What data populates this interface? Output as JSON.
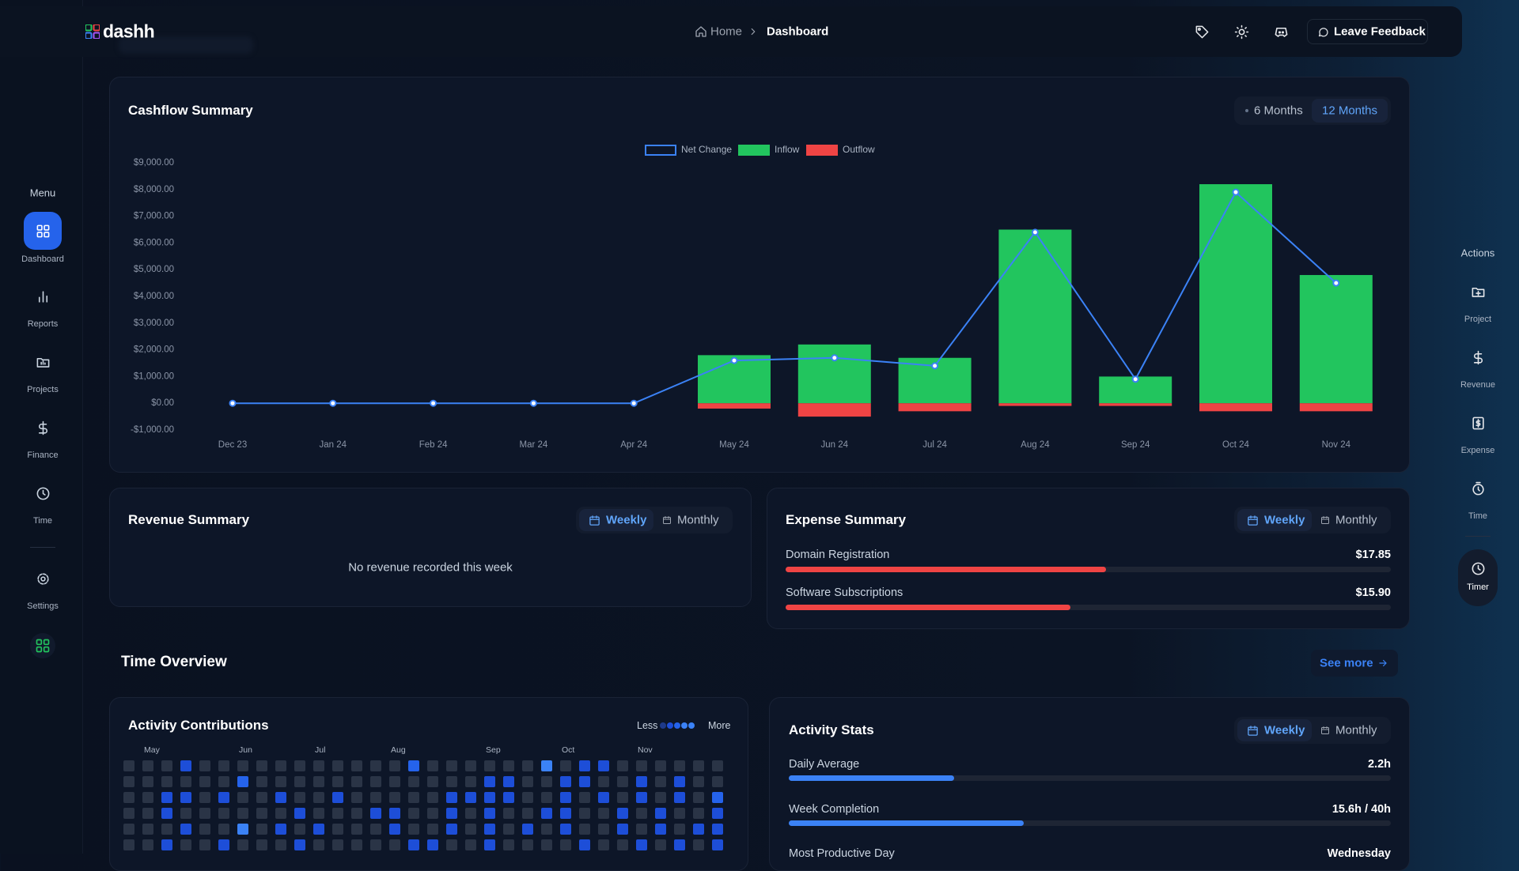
{
  "header": {
    "logo": "dashh",
    "breadcrumb": [
      "Home",
      "Dashboard"
    ],
    "feedback": "Leave Feedback"
  },
  "sidebar": {
    "title": "Menu",
    "items": [
      "Dashboard",
      "Reports",
      "Projects",
      "Finance",
      "Time",
      "Settings"
    ]
  },
  "actions": {
    "title": "Actions",
    "items": [
      "Project",
      "Revenue",
      "Expense",
      "Time",
      "Timer"
    ]
  },
  "cashflow_controls": {
    "ranges": [
      "6 Months",
      "12 Months"
    ]
  },
  "chart_data": {
    "type": "bar",
    "title": "Cashflow Summary",
    "categories": [
      "Dec 23",
      "Jan 24",
      "Feb 24",
      "Mar 24",
      "Apr 24",
      "May 24",
      "Jun 24",
      "Jul 24",
      "Aug 24",
      "Sep 24",
      "Oct 24",
      "Nov 24"
    ],
    "series": [
      {
        "name": "Net Change",
        "type": "line",
        "color": "#3b82f6",
        "values": [
          0,
          0,
          0,
          0,
          0,
          1600,
          1700,
          1400,
          6400,
          900,
          7900,
          4500
        ]
      },
      {
        "name": "Inflow",
        "type": "bar",
        "color": "#22c55e",
        "values": [
          0,
          0,
          0,
          0,
          0,
          1800,
          2200,
          1700,
          6500,
          1000,
          8200,
          4800
        ]
      },
      {
        "name": "Outflow",
        "type": "bar",
        "color": "#ef4444",
        "values": [
          0,
          0,
          0,
          0,
          0,
          -200,
          -500,
          -300,
          -100,
          -100,
          -300,
          -300
        ]
      }
    ],
    "ylim": [
      -1000,
      9000
    ],
    "yticks": [
      {
        "value": -1000,
        "label": "-$1,000.00"
      },
      {
        "value": 0,
        "label": "$0.00"
      },
      {
        "value": 1000,
        "label": "$1,000.00"
      },
      {
        "value": 2000,
        "label": "$2,000.00"
      },
      {
        "value": 3000,
        "label": "$3,000.00"
      },
      {
        "value": 4000,
        "label": "$4,000.00"
      },
      {
        "value": 5000,
        "label": "$5,000.00"
      },
      {
        "value": 6000,
        "label": "$6,000.00"
      },
      {
        "value": 7000,
        "label": "$7,000.00"
      },
      {
        "value": 8000,
        "label": "$8,000.00"
      },
      {
        "value": 9000,
        "label": "$9,000.00"
      }
    ],
    "grid": false,
    "legend": "top"
  },
  "revenue": {
    "title": "Revenue Summary",
    "tabs": [
      "Weekly",
      "Monthly"
    ],
    "empty": "No revenue recorded this week"
  },
  "expense": {
    "title": "Expense Summary",
    "tabs": [
      "Weekly",
      "Monthly"
    ],
    "items": [
      {
        "name": "Domain Registration",
        "amount": 17.85,
        "label": "$17.85"
      },
      {
        "name": "Software Subscriptions",
        "amount": 15.9,
        "label": "$15.90"
      }
    ]
  },
  "time": {
    "title": "Time Overview",
    "see_more": "See more"
  },
  "activity": {
    "title": "Activity Contributions",
    "less": "Less",
    "more": "More",
    "months": [
      "May",
      "Jun",
      "Jul",
      "Aug",
      "Sep",
      "Oct",
      "Nov"
    ],
    "levels": [
      [
        0,
        0,
        0,
        2,
        0,
        0,
        0,
        0,
        0,
        0,
        0,
        0,
        0,
        0,
        0,
        3,
        0,
        0,
        0,
        0,
        0,
        0,
        4,
        0,
        2,
        2,
        0,
        0,
        0,
        0,
        0,
        0
      ],
      [
        0,
        0,
        0,
        0,
        0,
        0,
        3,
        0,
        0,
        0,
        0,
        0,
        0,
        0,
        0,
        0,
        0,
        0,
        0,
        2,
        2,
        0,
        0,
        2,
        2,
        0,
        0,
        2,
        0,
        2,
        0,
        0
      ],
      [
        0,
        0,
        2,
        2,
        0,
        2,
        0,
        0,
        2,
        0,
        0,
        2,
        0,
        0,
        0,
        0,
        0,
        2,
        2,
        2,
        2,
        0,
        0,
        2,
        0,
        2,
        0,
        2,
        0,
        2,
        0,
        3
      ],
      [
        0,
        0,
        2,
        0,
        0,
        0,
        0,
        0,
        0,
        2,
        0,
        0,
        0,
        2,
        2,
        0,
        0,
        2,
        0,
        2,
        0,
        0,
        2,
        2,
        0,
        0,
        2,
        0,
        2,
        0,
        0,
        2
      ],
      [
        0,
        0,
        0,
        2,
        0,
        0,
        4,
        0,
        2,
        0,
        2,
        0,
        0,
        0,
        2,
        0,
        0,
        2,
        0,
        2,
        0,
        2,
        0,
        2,
        0,
        0,
        2,
        0,
        2,
        0,
        2,
        2
      ],
      [
        0,
        0,
        2,
        0,
        0,
        2,
        0,
        0,
        0,
        2,
        0,
        0,
        0,
        0,
        0,
        2,
        2,
        0,
        0,
        2,
        0,
        0,
        0,
        0,
        2,
        0,
        0,
        2,
        0,
        2,
        0,
        2
      ]
    ]
  },
  "stats": {
    "title": "Activity Stats",
    "tabs": [
      "Weekly",
      "Monthly"
    ],
    "daily_average": {
      "label": "Daily Average",
      "value": 2.2,
      "value_label": "2.2h"
    },
    "week_completion": {
      "label": "Week Completion",
      "value": 15.6,
      "target": 40,
      "value_label": "15.6h / 40h"
    },
    "most_productive": {
      "label": "Most Productive Day",
      "value": "Wednesday"
    }
  }
}
